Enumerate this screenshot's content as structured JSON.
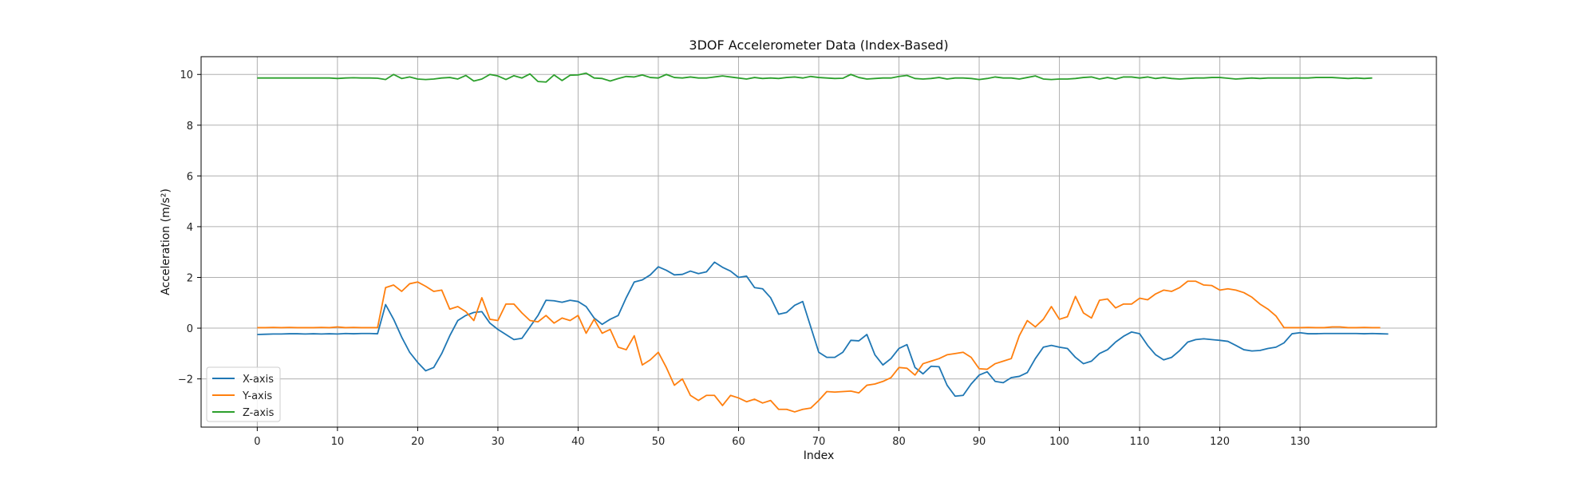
{
  "chart_data": {
    "type": "line",
    "title": "3DOF Accelerometer Data (Index-Based)",
    "xlabel": "Index",
    "ylabel": "Acceleration (m/s²)",
    "xlim": [
      -7,
      147
    ],
    "ylim": [
      -3.9,
      10.7
    ],
    "xticks": [
      0,
      10,
      20,
      30,
      40,
      50,
      60,
      70,
      80,
      90,
      100,
      110,
      120,
      130
    ],
    "yticks": [
      -2,
      0,
      2,
      4,
      6,
      8,
      10
    ],
    "grid": true,
    "legend_position": "lower-left",
    "series": [
      {
        "name": "X-axis",
        "color": "#1f77b4",
        "values": [
          -0.25,
          -0.24,
          -0.23,
          -0.23,
          -0.22,
          -0.22,
          -0.23,
          -0.22,
          -0.23,
          -0.22,
          -0.23,
          -0.21,
          -0.22,
          -0.21,
          -0.21,
          -0.22,
          0.93,
          0.35,
          -0.35,
          -0.95,
          -1.35,
          -1.68,
          -1.55,
          -1.0,
          -0.3,
          0.3,
          0.5,
          0.62,
          0.65,
          0.2,
          -0.05,
          -0.25,
          -0.45,
          -0.4,
          0.05,
          0.5,
          1.1,
          1.08,
          1.02,
          1.1,
          1.05,
          0.85,
          0.4,
          0.15,
          0.35,
          0.5,
          1.2,
          1.82,
          1.9,
          2.1,
          2.42,
          2.28,
          2.1,
          2.12,
          2.25,
          2.15,
          2.22,
          2.6,
          2.4,
          2.25,
          2.0,
          2.05,
          1.6,
          1.55,
          1.2,
          0.55,
          0.62,
          0.9,
          1.05,
          0.05,
          -0.95,
          -1.15,
          -1.15,
          -0.95,
          -0.48,
          -0.5,
          -0.25,
          -1.05,
          -1.45,
          -1.2,
          -0.8,
          -0.65,
          -1.55,
          -1.8,
          -1.5,
          -1.52,
          -2.25,
          -2.68,
          -2.65,
          -2.2,
          -1.85,
          -1.72,
          -2.1,
          -2.15,
          -1.95,
          -1.9,
          -1.75,
          -1.2,
          -0.75,
          -0.68,
          -0.75,
          -0.8,
          -1.15,
          -1.4,
          -1.3,
          -1.0,
          -0.85,
          -0.55,
          -0.32,
          -0.15,
          -0.22,
          -0.68,
          -1.05,
          -1.25,
          -1.15,
          -0.88,
          -0.55,
          -0.45,
          -0.42,
          -0.45,
          -0.48,
          -0.52,
          -0.68,
          -0.85,
          -0.9,
          -0.88,
          -0.8,
          -0.75,
          -0.58,
          -0.22,
          -0.18,
          -0.22,
          -0.22,
          -0.21,
          -0.21,
          -0.21,
          -0.21,
          -0.21,
          -0.22,
          -0.21,
          -0.22,
          -0.23
        ]
      },
      {
        "name": "Y-axis",
        "color": "#ff7f0e",
        "values": [
          0.02,
          0.02,
          0.03,
          0.02,
          0.03,
          0.02,
          0.02,
          0.02,
          0.03,
          0.02,
          0.05,
          0.02,
          0.03,
          0.02,
          0.02,
          0.02,
          1.6,
          1.7,
          1.45,
          1.75,
          1.82,
          1.65,
          1.45,
          1.5,
          0.75,
          0.85,
          0.65,
          0.3,
          1.2,
          0.35,
          0.3,
          0.95,
          0.95,
          0.6,
          0.3,
          0.25,
          0.5,
          0.2,
          0.4,
          0.3,
          0.5,
          -0.2,
          0.35,
          -0.2,
          -0.05,
          -0.75,
          -0.85,
          -0.3,
          -1.45,
          -1.25,
          -0.95,
          -1.55,
          -2.25,
          -2.0,
          -2.65,
          -2.85,
          -2.65,
          -2.65,
          -3.05,
          -2.65,
          -2.75,
          -2.9,
          -2.8,
          -2.95,
          -2.85,
          -3.2,
          -3.2,
          -3.3,
          -3.2,
          -3.15,
          -2.85,
          -2.5,
          -2.52,
          -2.5,
          -2.48,
          -2.55,
          -2.25,
          -2.2,
          -2.1,
          -1.95,
          -1.55,
          -1.58,
          -1.85,
          -1.4,
          -1.3,
          -1.2,
          -1.05,
          -1.0,
          -0.95,
          -1.15,
          -1.6,
          -1.62,
          -1.4,
          -1.3,
          -1.2,
          -0.3,
          0.3,
          0.05,
          0.35,
          0.85,
          0.35,
          0.45,
          1.25,
          0.6,
          0.4,
          1.1,
          1.15,
          0.8,
          0.95,
          0.95,
          1.18,
          1.12,
          1.35,
          1.5,
          1.45,
          1.6,
          1.85,
          1.85,
          1.7,
          1.68,
          1.5,
          1.55,
          1.5,
          1.4,
          1.22,
          0.95,
          0.75,
          0.48,
          0.02,
          0.02,
          0.02,
          0.03,
          0.02,
          0.02,
          0.05,
          0.05,
          0.02,
          0.02,
          0.03,
          0.02,
          0.02
        ]
      },
      {
        "name": "Z-axis",
        "color": "#2ca02c",
        "values": [
          9.86,
          9.86,
          9.86,
          9.86,
          9.86,
          9.86,
          9.86,
          9.86,
          9.86,
          9.86,
          9.84,
          9.86,
          9.87,
          9.86,
          9.86,
          9.85,
          9.8,
          10.0,
          9.84,
          9.9,
          9.82,
          9.8,
          9.82,
          9.86,
          9.88,
          9.82,
          9.96,
          9.74,
          9.82,
          10.0,
          9.94,
          9.8,
          9.95,
          9.86,
          10.02,
          9.72,
          9.7,
          9.98,
          9.76,
          9.97,
          9.98,
          10.05,
          9.86,
          9.84,
          9.74,
          9.84,
          9.92,
          9.9,
          9.98,
          9.88,
          9.86,
          10.0,
          9.88,
          9.86,
          9.9,
          9.86,
          9.86,
          9.9,
          9.94,
          9.9,
          9.86,
          9.82,
          9.88,
          9.84,
          9.86,
          9.84,
          9.88,
          9.9,
          9.86,
          9.92,
          9.88,
          9.86,
          9.84,
          9.85,
          10.0,
          9.88,
          9.82,
          9.84,
          9.86,
          9.86,
          9.92,
          9.96,
          9.84,
          9.82,
          9.84,
          9.88,
          9.82,
          9.86,
          9.86,
          9.84,
          9.8,
          9.84,
          9.9,
          9.86,
          9.86,
          9.82,
          9.88,
          9.94,
          9.82,
          9.8,
          9.82,
          9.82,
          9.84,
          9.88,
          9.9,
          9.82,
          9.88,
          9.82,
          9.9,
          9.9,
          9.86,
          9.9,
          9.84,
          9.88,
          9.84,
          9.82,
          9.84,
          9.86,
          9.86,
          9.88,
          9.88,
          9.85,
          9.82,
          9.84,
          9.86,
          9.84,
          9.86,
          9.86,
          9.86,
          9.86,
          9.86,
          9.86,
          9.88,
          9.88,
          9.88,
          9.86,
          9.84,
          9.86,
          9.84,
          9.86
        ]
      }
    ]
  }
}
